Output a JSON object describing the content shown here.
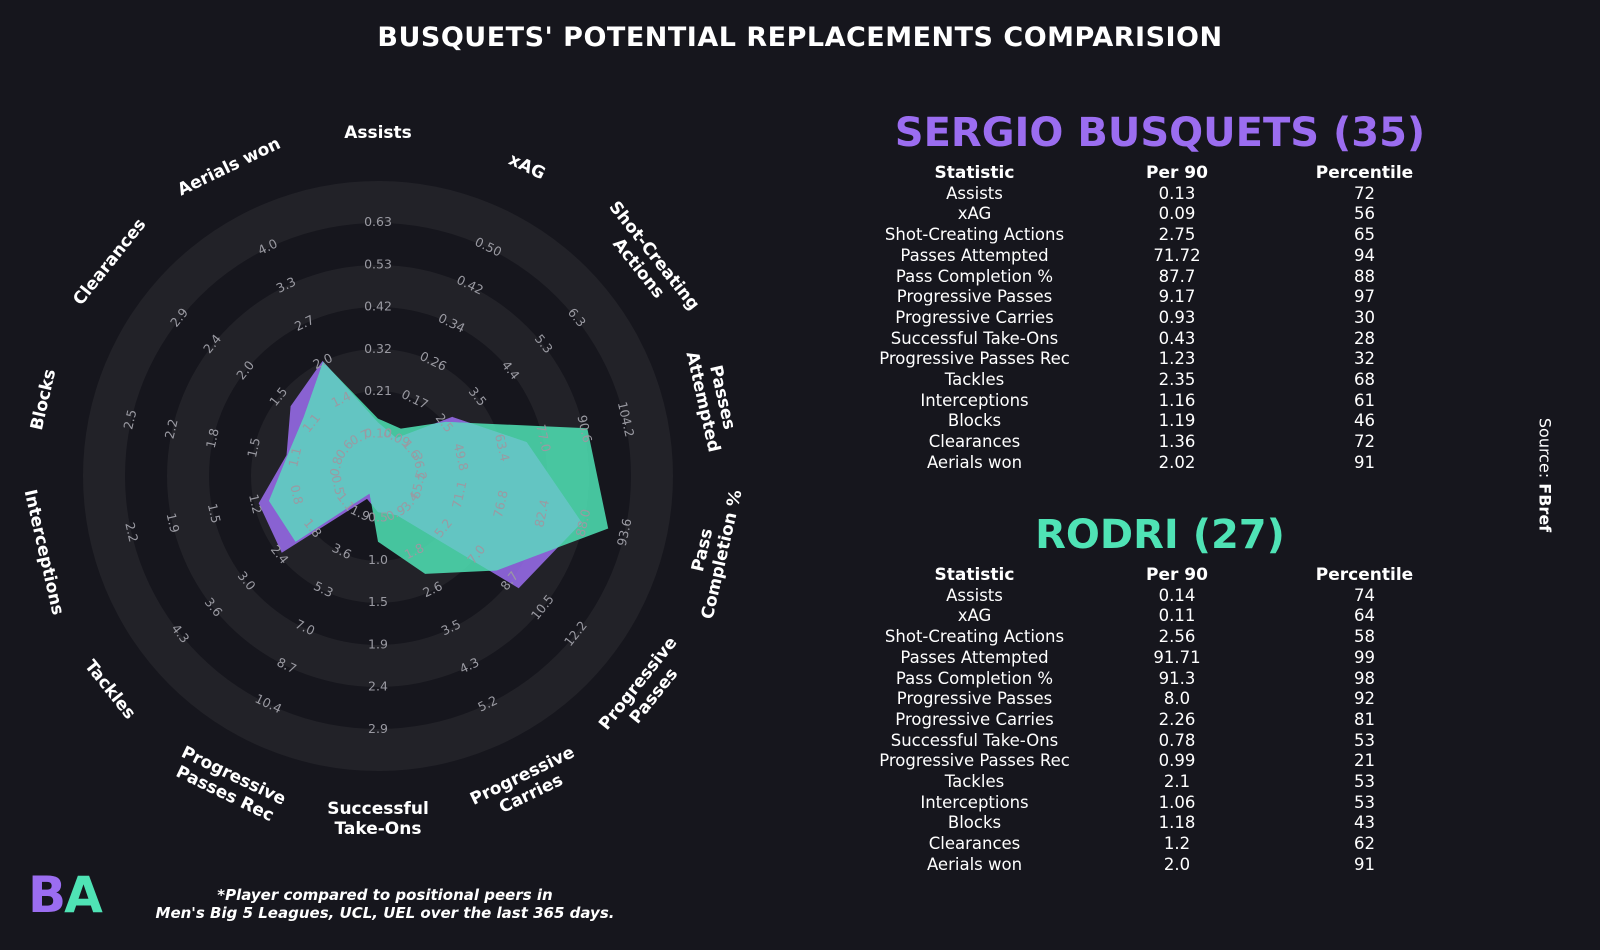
{
  "title": "BUSQUETS' POTENTIAL REPLACEMENTS COMPARISION",
  "colors": {
    "background": "#16161d",
    "ring": "#222228",
    "player1": "#9b6df0",
    "player2": "#4fe3b5",
    "overlap": "#63c5c2"
  },
  "chart_data": {
    "type": "radar",
    "axes": [
      {
        "label": [
          "Assists"
        ],
        "ticks": [
          "0.10",
          "0.21",
          "0.32",
          "0.42",
          "0.53",
          "0.63"
        ]
      },
      {
        "label": [
          "xAG"
        ],
        "ticks": [
          "0.09",
          "0.17",
          "0.26",
          "0.34",
          "0.42",
          "0.50"
        ]
      },
      {
        "label": [
          "Shot-Creating",
          "Actions"
        ],
        "ticks": [
          "1.6",
          "2.5",
          "3.5",
          "4.4",
          "5.3",
          "6.3"
        ]
      },
      {
        "label": [
          "Passes",
          "Attempted"
        ],
        "ticks": [
          "36.2",
          "49.8",
          "63.4",
          "77.0",
          "90.6",
          "104.2"
        ]
      },
      {
        "label": [
          "Pass",
          "Completion %"
        ],
        "ticks": [
          "65.5",
          "71.1",
          "76.8",
          "82.4",
          "88.0",
          "93.6"
        ]
      },
      {
        "label": [
          "Progressive",
          "Passes"
        ],
        "ticks": [
          "3.4",
          "5.2",
          "7.0",
          "8.7",
          "10.5",
          "12.2"
        ]
      },
      {
        "label": [
          "Progressive",
          "Carries"
        ],
        "ticks": [
          "0.9",
          "1.8",
          "2.6",
          "3.5",
          "4.3",
          "5.2"
        ]
      },
      {
        "label": [
          "Successful",
          "Take-Ons"
        ],
        "ticks": [
          "0.5",
          "1.0",
          "1.5",
          "1.9",
          "2.4",
          "2.9"
        ]
      },
      {
        "label": [
          "Progressive",
          "Passes Rec"
        ],
        "ticks": [
          "1.9",
          "3.6",
          "5.3",
          "7.0",
          "8.7",
          "10.4"
        ]
      },
      {
        "label": [
          "Tackles"
        ],
        "ticks": [
          "1.1",
          "1.8",
          "2.4",
          "3.0",
          "3.6",
          "4.3"
        ]
      },
      {
        "label": [
          "Interceptions"
        ],
        "ticks": [
          "0.5",
          "0.8",
          "1.2",
          "1.5",
          "1.9",
          "2.2"
        ]
      },
      {
        "label": [
          "Blocks"
        ],
        "ticks": [
          "0.8",
          "1.1",
          "1.5",
          "1.8",
          "2.2",
          "2.5"
        ]
      },
      {
        "label": [
          "Clearances"
        ],
        "ticks": [
          "0.6",
          "1.1",
          "1.5",
          "2.0",
          "2.4",
          "2.9"
        ]
      },
      {
        "label": [
          "Aerials won"
        ],
        "ticks": [
          "0.7",
          "1.4",
          "2.0",
          "2.7",
          "3.3",
          "4.0"
        ]
      }
    ],
    "series": [
      {
        "name": "SERGIO BUSQUETS (35)",
        "values": [
          0.13,
          0.09,
          2.75,
          71.72,
          87.7,
          9.17,
          0.93,
          0.43,
          1.23,
          2.35,
          1.16,
          1.19,
          1.36,
          2.02
        ]
      },
      {
        "name": "RODRI (27)",
        "values": [
          0.14,
          0.11,
          2.56,
          91.71,
          91.3,
          8.0,
          2.26,
          0.78,
          0.99,
          2.1,
          1.06,
          1.18,
          1.2,
          2.0
        ]
      }
    ]
  },
  "players": [
    {
      "name": "SERGIO BUSQUETS (35)",
      "headers": [
        "Statistic",
        "Per 90",
        "Percentile"
      ],
      "rows": [
        [
          "Assists",
          "0.13",
          "72"
        ],
        [
          "xAG",
          "0.09",
          "56"
        ],
        [
          "Shot-Creating Actions",
          "2.75",
          "65"
        ],
        [
          "Passes Attempted",
          "71.72",
          "94"
        ],
        [
          "Pass Completion %",
          "87.7",
          "88"
        ],
        [
          "Progressive Passes",
          "9.17",
          "97"
        ],
        [
          "Progressive Carries",
          "0.93",
          "30"
        ],
        [
          "Successful Take-Ons",
          "0.43",
          "28"
        ],
        [
          "Progressive Passes Rec",
          "1.23",
          "32"
        ],
        [
          "Tackles",
          "2.35",
          "68"
        ],
        [
          "Interceptions",
          "1.16",
          "61"
        ],
        [
          "Blocks",
          "1.19",
          "46"
        ],
        [
          "Clearances",
          "1.36",
          "72"
        ],
        [
          "Aerials won",
          "2.02",
          "91"
        ]
      ]
    },
    {
      "name": "RODRI (27)",
      "headers": [
        "Statistic",
        "Per 90",
        "Percentile"
      ],
      "rows": [
        [
          "Assists",
          "0.14",
          "74"
        ],
        [
          "xAG",
          "0.11",
          "64"
        ],
        [
          "Shot-Creating Actions",
          "2.56",
          "58"
        ],
        [
          "Passes Attempted",
          "91.71",
          "99"
        ],
        [
          "Pass Completion %",
          "91.3",
          "98"
        ],
        [
          "Progressive Passes",
          "8.0",
          "92"
        ],
        [
          "Progressive Carries",
          "2.26",
          "81"
        ],
        [
          "Successful Take-Ons",
          "0.78",
          "53"
        ],
        [
          "Progressive Passes Rec",
          "0.99",
          "21"
        ],
        [
          "Tackles",
          "2.1",
          "53"
        ],
        [
          "Interceptions",
          "1.06",
          "53"
        ],
        [
          "Blocks",
          "1.18",
          "43"
        ],
        [
          "Clearances",
          "1.2",
          "62"
        ],
        [
          "Aerials won",
          "2.0",
          "91"
        ]
      ]
    }
  ],
  "source": {
    "prefix": "Source: ",
    "name": "FBref"
  },
  "logo": {
    "left": "B",
    "right": "A"
  },
  "footnote": [
    "*Player compared to positional peers in",
    "Men's Big 5 Leagues, UCL, UEL over the last 365 days."
  ]
}
